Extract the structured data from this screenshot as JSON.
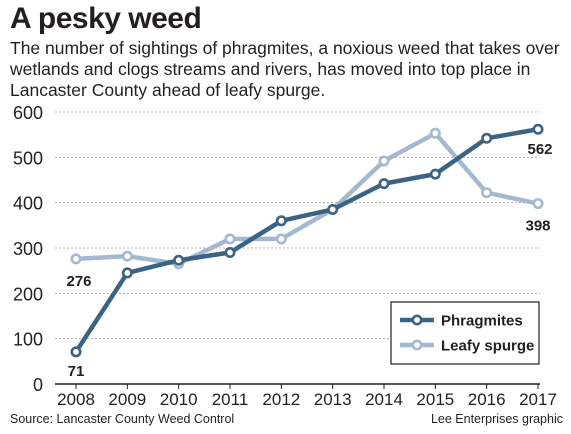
{
  "title": "A pesky weed",
  "subtitle": "The number of sightings of phragmites, a noxious weed that takes over wetlands and clogs streams and rivers, has moved into top place in Lancaster County ahead of leafy spurge.",
  "source": "Source: Lancaster County Weed Control",
  "credit": "Lee Enterprises graphic",
  "chart_data": {
    "type": "line",
    "title": "",
    "xlabel": "",
    "ylabel": "",
    "x": [
      "2008",
      "2009",
      "2010",
      "2011",
      "2012",
      "2013",
      "2014",
      "2015",
      "2016",
      "2017"
    ],
    "ylim": [
      0,
      600
    ],
    "yticks": [
      0,
      100,
      200,
      300,
      400,
      500,
      600
    ],
    "grid": true,
    "legend": "bottom-right",
    "series": [
      {
        "name": "Phragmites",
        "color": "#3b6484",
        "values": [
          71,
          245,
          273,
          290,
          360,
          385,
          442,
          463,
          542,
          562
        ]
      },
      {
        "name": "Leafy spurge",
        "color": "#a5b8d1",
        "values": [
          276,
          282,
          265,
          320,
          320,
          385,
          492,
          553,
          422,
          398
        ]
      }
    ],
    "annotations": [
      {
        "series": 0,
        "index": 0,
        "text": "71"
      },
      {
        "series": 1,
        "index": 0,
        "text": "276"
      },
      {
        "series": 0,
        "index": 9,
        "text": "562"
      },
      {
        "series": 1,
        "index": 9,
        "text": "398"
      }
    ]
  }
}
